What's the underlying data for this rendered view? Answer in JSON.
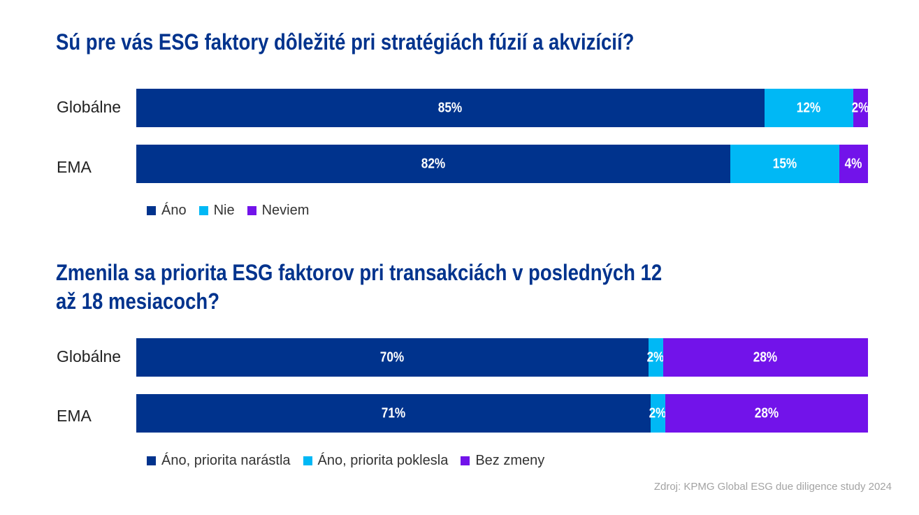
{
  "colors": {
    "yes": "#00338D",
    "no": "#00B8F5",
    "third": "#7213EA"
  },
  "chart_data": [
    {
      "type": "bar",
      "orientation": "horizontal",
      "stacked": true,
      "title": "Sú pre vás ESG faktory dôležité pri stratégiách fúzií a akvizícií?",
      "categories": [
        "Globálne",
        "EMA"
      ],
      "series": [
        {
          "name": "Áno",
          "values": [
            85,
            82
          ],
          "labels": [
            "85%",
            "82%"
          ]
        },
        {
          "name": "Nie",
          "values": [
            12,
            15
          ],
          "labels": [
            "12%",
            "15%"
          ]
        },
        {
          "name": "Neviem",
          "values": [
            2,
            4
          ],
          "labels": [
            "2%",
            "4%"
          ]
        }
      ],
      "legend_position": "bottom-left"
    },
    {
      "type": "bar",
      "orientation": "horizontal",
      "stacked": true,
      "title": "Zmenila sa priorita ESG faktorov pri transakciách v posledných 12 až 18 mesiacoch?",
      "categories": [
        "Globálne",
        "EMA"
      ],
      "series": [
        {
          "name": "Áno, priorita narástla",
          "values": [
            70,
            71
          ],
          "labels": [
            "70%",
            "71%"
          ]
        },
        {
          "name": "Áno, priorita poklesla",
          "values": [
            2,
            2
          ],
          "labels": [
            "2%",
            "2%"
          ]
        },
        {
          "name": "Bez zmeny",
          "values": [
            28,
            28
          ],
          "labels": [
            "28%",
            "28%"
          ]
        }
      ],
      "legend_position": "bottom-left"
    }
  ],
  "source": "Zdroj: KPMG Global ESG due diligence study 2024"
}
